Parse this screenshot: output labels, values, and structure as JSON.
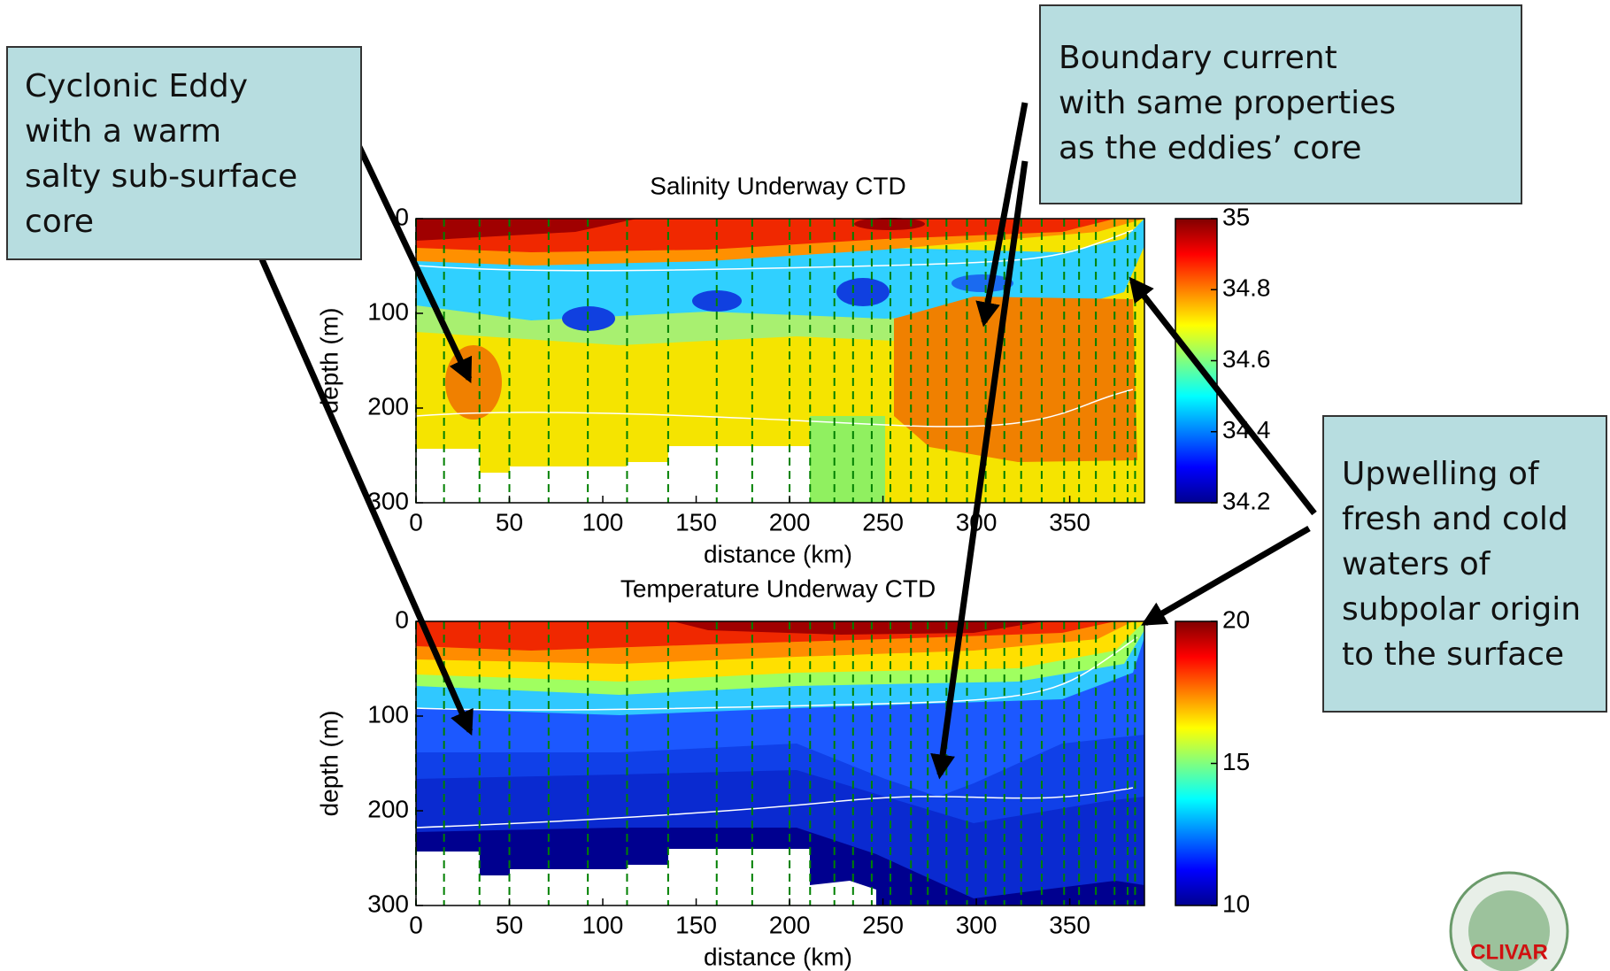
{
  "callouts": [
    {
      "lines": [
        "Cyclonic Eddy",
        "with a warm",
        "salty sub-surface",
        "core"
      ]
    },
    {
      "lines": [
        "Boundary current",
        "with same properties",
        "as the eddies’ core"
      ]
    },
    {
      "lines": [
        "Upwelling of",
        "fresh and cold",
        "waters of",
        "subpolar origin",
        "to the surface"
      ]
    }
  ],
  "logo": "CLIVAR",
  "chart_data": [
    {
      "type": "contour",
      "title": "Salinity Underway CTD",
      "x_label": "distance (km)",
      "y_label": "depth (m)",
      "xlim": [
        0,
        390
      ],
      "xticks": [
        0,
        50,
        100,
        150,
        200,
        250,
        300,
        350
      ],
      "ylim": [
        300,
        0
      ],
      "yticks": [
        0,
        100,
        200,
        300
      ],
      "colorbar": {
        "lim": [
          34.2,
          35
        ],
        "ticks": [
          34.2,
          34.4,
          34.6,
          34.8,
          35
        ]
      },
      "stations": [
        0,
        15,
        34,
        50,
        71,
        92,
        113,
        135,
        161,
        180,
        200,
        211,
        224,
        234,
        244,
        254,
        265,
        274,
        284,
        295,
        305,
        315,
        324,
        335,
        347,
        355,
        364,
        374,
        381,
        385
      ],
      "station_color": "#008000"
    },
    {
      "type": "contour",
      "title": "Temperature Underway CTD",
      "x_label": "distance (km)",
      "y_label": "depth (m)",
      "xlim": [
        0,
        390
      ],
      "xticks": [
        0,
        50,
        100,
        150,
        200,
        250,
        300,
        350
      ],
      "ylim": [
        300,
        0
      ],
      "yticks": [
        0,
        100,
        200,
        300
      ],
      "colorbar": {
        "lim": [
          10,
          20
        ],
        "ticks": [
          10,
          15,
          20
        ]
      },
      "stations": [
        0,
        15,
        34,
        50,
        71,
        92,
        113,
        135,
        161,
        180,
        200,
        211,
        224,
        234,
        244,
        254,
        265,
        274,
        284,
        295,
        305,
        315,
        324,
        335,
        347,
        355,
        364,
        374,
        381,
        385
      ],
      "station_color": "#008000"
    }
  ]
}
